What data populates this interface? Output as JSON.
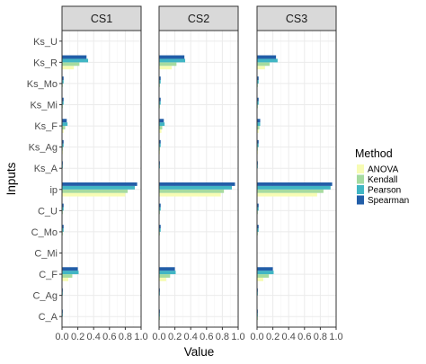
{
  "chart_data": {
    "type": "bar",
    "orientation": "horizontal",
    "facet_by": "case",
    "panels": [
      "CS1",
      "CS2",
      "CS3"
    ],
    "categories": [
      "Ks_U",
      "Ks_R",
      "Ks_Mo",
      "Ks_Mi",
      "Ks_F",
      "Ks_Ag",
      "Ks_A",
      "ip",
      "C_U",
      "C_Mo",
      "C_Mi",
      "C_F",
      "C_Ag",
      "C_A"
    ],
    "xlabel": "Value",
    "ylabel": "Inputs",
    "xlim": [
      0,
      1
    ],
    "xticks": [
      "0.0",
      "0.2",
      "0.4",
      "0.6",
      "0.8",
      "1.0"
    ],
    "grid": true,
    "legend": {
      "title": "Method",
      "position": "right"
    },
    "series": [
      {
        "name": "ANOVA",
        "color": "#f7fcb4",
        "values": [
          [
            0.0,
            0.15,
            0.0,
            0.0,
            0.02,
            0.01,
            0.0,
            0.8,
            0.0,
            0.0,
            0.0,
            0.08,
            0.0,
            0.0
          ],
          [
            0.0,
            0.16,
            0.0,
            0.0,
            0.03,
            0.01,
            0.0,
            0.78,
            0.0,
            0.0,
            0.0,
            0.09,
            0.0,
            0.0
          ],
          [
            0.0,
            0.1,
            0.0,
            0.0,
            0.02,
            0.01,
            0.0,
            0.76,
            0.0,
            0.0,
            0.0,
            0.08,
            0.0,
            0.0
          ]
        ]
      },
      {
        "name": "Kendall",
        "color": "#a6dba0",
        "values": [
          [
            0.0,
            0.22,
            0.01,
            0.01,
            0.04,
            0.01,
            0.0,
            0.83,
            0.01,
            0.01,
            0.0,
            0.13,
            0.0,
            0.0
          ],
          [
            0.0,
            0.22,
            0.01,
            0.01,
            0.04,
            0.01,
            0.0,
            0.82,
            0.01,
            0.01,
            0.0,
            0.14,
            0.0,
            0.01
          ],
          [
            0.0,
            0.16,
            0.01,
            0.01,
            0.03,
            0.01,
            0.0,
            0.84,
            0.01,
            0.01,
            0.0,
            0.15,
            0.0,
            0.01
          ]
        ]
      },
      {
        "name": "Pearson",
        "color": "#41b6c4",
        "values": [
          [
            0.0,
            0.33,
            0.02,
            0.02,
            0.07,
            0.02,
            0.01,
            0.92,
            0.02,
            0.02,
            0.0,
            0.21,
            0.01,
            0.01
          ],
          [
            0.0,
            0.33,
            0.02,
            0.02,
            0.07,
            0.02,
            0.01,
            0.92,
            0.02,
            0.02,
            0.0,
            0.21,
            0.01,
            0.01
          ],
          [
            0.0,
            0.26,
            0.02,
            0.02,
            0.04,
            0.02,
            0.01,
            0.93,
            0.02,
            0.02,
            0.0,
            0.21,
            0.01,
            0.01
          ]
        ]
      },
      {
        "name": "Spearman",
        "color": "#225ea8",
        "values": [
          [
            0.0,
            0.31,
            0.02,
            0.02,
            0.06,
            0.02,
            0.01,
            0.95,
            0.02,
            0.02,
            0.0,
            0.2,
            0.01,
            0.01
          ],
          [
            0.0,
            0.32,
            0.02,
            0.02,
            0.06,
            0.02,
            0.01,
            0.96,
            0.02,
            0.02,
            0.0,
            0.2,
            0.01,
            0.01
          ],
          [
            0.0,
            0.24,
            0.02,
            0.02,
            0.04,
            0.02,
            0.01,
            0.95,
            0.02,
            0.02,
            0.0,
            0.2,
            0.01,
            0.01
          ]
        ]
      }
    ]
  }
}
